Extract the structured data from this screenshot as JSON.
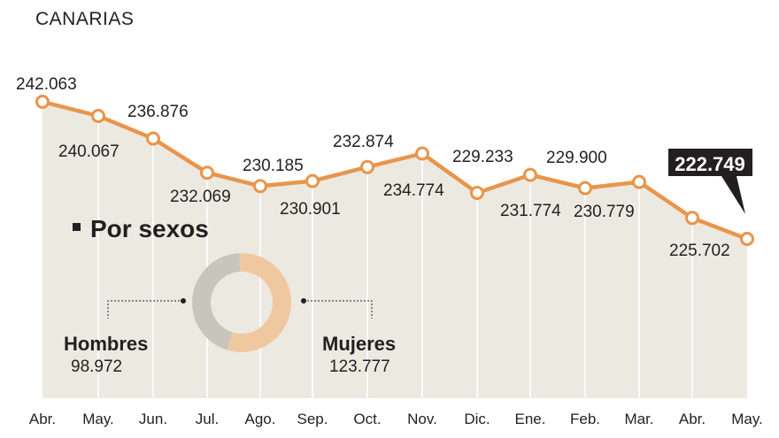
{
  "header": {
    "subtitle": "CANARIAS"
  },
  "colors": {
    "line": "#e8954c",
    "area": "#ece9e1",
    "gridline": "#ffffff",
    "callout_bg": "#231f20",
    "donut_hombres": "#c8c6bc",
    "donut_mujeres": "#f0c8a0"
  },
  "chart_data": {
    "type": "area",
    "categories": [
      "Abr.",
      "May.",
      "Jun.",
      "Jul.",
      "Ago.",
      "Sep.",
      "Oct.",
      "Nov.",
      "Dic.",
      "Ene.",
      "Feb.",
      "Mar.",
      "Abr.",
      "May."
    ],
    "values": [
      242063,
      240067,
      236876,
      232069,
      230185,
      230901,
      232874,
      234774,
      229233,
      231774,
      229900,
      230779,
      225702,
      222749
    ],
    "value_labels": [
      "242.063",
      "240.067",
      "236.876",
      "232.069",
      "230.185",
      "230.901",
      "232.874",
      "234.774",
      "229.233",
      "231.774",
      "229.900",
      "230.779",
      "225.702",
      "222.749"
    ],
    "grid": true,
    "highlight": {
      "label": "222.749"
    },
    "inset": {
      "type": "pie",
      "title": "Por sexos",
      "slices": [
        {
          "name": "Hombres",
          "value": 98972,
          "label": "98.972"
        },
        {
          "name": "Mujeres",
          "value": 123777,
          "label": "123.777"
        }
      ]
    }
  }
}
